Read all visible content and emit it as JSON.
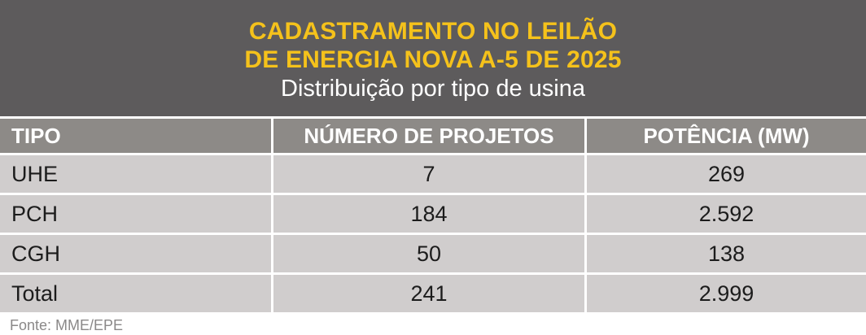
{
  "header": {
    "title_line1": "CADASTRAMENTO NO LEILÃO",
    "title_line2": "DE ENERGIA NOVA A-5 DE 2025",
    "subtitle": "Distribuição por tipo de usina",
    "title_color": "#f5c21b",
    "background_color": "#5d5b5c"
  },
  "table": {
    "columns": [
      "TIPO",
      "NÚMERO DE PROJETOS",
      "POTÊNCIA (MW)"
    ],
    "rows": [
      [
        "UHE",
        "7",
        "269"
      ],
      [
        "PCH",
        "184",
        "2.592"
      ],
      [
        "CGH",
        "50",
        "138"
      ],
      [
        "Total",
        "241",
        "2.999"
      ]
    ],
    "header_color": "#8d8a87",
    "row_color": "#d0cdcd"
  },
  "source": "Fonte: MME/EPE"
}
